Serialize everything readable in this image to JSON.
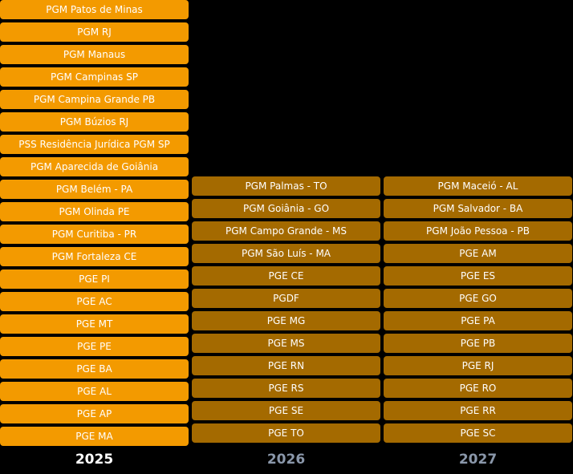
{
  "columns": [
    {
      "year": "2025",
      "color": "#F39A00",
      "items": [
        "PGM Patos de Minas",
        "PGM RJ",
        "PGM Manaus",
        "PGM Campinas SP",
        "PGM Campina Grande PB",
        "PGM Búzios RJ",
        "PSS Residência Jurídica PGM SP",
        "PGM Aparecida de Goiânia",
        "PGM Belém - PA",
        "PGM Olinda PE",
        "PGM Curitiba - PR",
        "PGM Fortaleza CE",
        "PGE PI",
        "PGE AC",
        "PGE MT",
        "PGE PE",
        "PGE BA",
        "PGE AL",
        "PGE AP",
        "PGE MA"
      ]
    },
    {
      "year": "2026",
      "color": "#A46A00",
      "items": [
        "PGM Palmas - TO",
        "PGM Goiânia - GO",
        "PGM Campo Grande - MS",
        "PGM São Luís - MA",
        "PGE CE",
        "PGDF",
        "PGE MG",
        "PGE MS",
        "PGE RN",
        "PGE RS",
        "PGE SE",
        "PGE TO"
      ]
    },
    {
      "year": "2027",
      "color": "#A46A00",
      "items": [
        "PGM Maceió - AL",
        "PGM Salvador - BA",
        "PGM João Pessoa - PB",
        "PGE AM",
        "PGE ES",
        "PGE GO",
        "PGE PA",
        "PGE PB",
        "PGE RJ",
        "PGE RO",
        "PGE RR",
        "PGE SC"
      ]
    }
  ]
}
